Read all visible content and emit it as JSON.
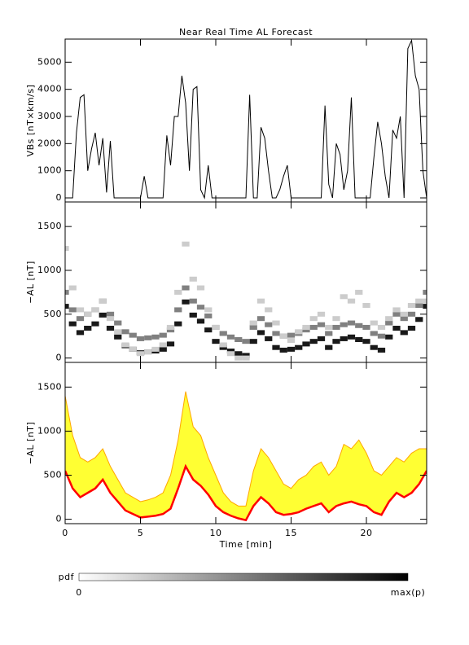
{
  "chart_data": [
    {
      "type": "line",
      "title": "Near Real Time AL Forecast",
      "ylabel": "VBs [nT×km/s]",
      "color": "#000000",
      "xlim": [
        0,
        24
      ],
      "ylim": [
        -150,
        5850
      ],
      "yticks": [
        0,
        1000,
        2000,
        3000,
        4000,
        5000
      ],
      "x": [
        0,
        0.25,
        0.5,
        0.75,
        1,
        1.25,
        1.5,
        1.75,
        2,
        2.25,
        2.5,
        2.75,
        3,
        3.25,
        3.5,
        3.75,
        4,
        4.25,
        4.5,
        4.75,
        5,
        5.25,
        5.5,
        5.75,
        6,
        6.25,
        6.5,
        6.75,
        7,
        7.25,
        7.5,
        7.75,
        8,
        8.25,
        8.5,
        8.75,
        9,
        9.25,
        9.5,
        9.75,
        10,
        10.25,
        10.5,
        10.75,
        11,
        11.25,
        11.5,
        11.75,
        12,
        12.25,
        12.5,
        12.75,
        13,
        13.25,
        13.5,
        13.75,
        14,
        14.25,
        14.5,
        14.75,
        15,
        15.25,
        15.5,
        15.75,
        16,
        16.25,
        16.5,
        16.75,
        17,
        17.25,
        17.5,
        17.75,
        18,
        18.25,
        18.5,
        18.75,
        19,
        19.25,
        19.5,
        19.75,
        20,
        20.25,
        20.5,
        20.75,
        21,
        21.25,
        21.5,
        21.75,
        22,
        22.25,
        22.5,
        22.75,
        23,
        23.25,
        23.5,
        23.75,
        24
      ],
      "values": [
        0,
        0,
        0,
        2400,
        3700,
        3800,
        1000,
        1800,
        2400,
        1200,
        2200,
        200,
        2100,
        0,
        0,
        0,
        0,
        0,
        0,
        0,
        0,
        800,
        0,
        0,
        0,
        0,
        0,
        2300,
        1200,
        3000,
        3000,
        4500,
        3500,
        1000,
        4000,
        4100,
        300,
        0,
        1200,
        0,
        0,
        0,
        0,
        0,
        0,
        0,
        0,
        0,
        0,
        3800,
        0,
        0,
        2600,
        2200,
        1000,
        0,
        0,
        300,
        800,
        1200,
        0,
        0,
        0,
        0,
        0,
        0,
        0,
        0,
        0,
        3400,
        500,
        0,
        2000,
        1600,
        300,
        1000,
        3700,
        0,
        0,
        0,
        0,
        0,
        1500,
        2800,
        2000,
        800,
        0,
        2500,
        2200,
        3000,
        0,
        5500,
        5800,
        4500,
        4000,
        1000,
        0
      ]
    },
    {
      "type": "heatmap",
      "ylabel": "−AL [nT]",
      "xlim": [
        0,
        24
      ],
      "ylim": [
        -50,
        1780
      ],
      "yticks": [
        0,
        500,
        1000,
        1500
      ],
      "x": [
        0,
        0.5,
        1,
        1.5,
        2,
        2.5,
        3,
        3.5,
        4,
        4.5,
        5,
        5.5,
        6,
        6.5,
        7,
        7.5,
        8,
        8.5,
        9,
        9.5,
        10,
        10.5,
        11,
        11.5,
        12,
        12.5,
        13,
        13.5,
        14,
        14.5,
        15,
        15.5,
        16,
        16.5,
        17,
        17.5,
        18,
        18.5,
        19,
        19.5,
        20,
        20.5,
        21,
        21.5,
        22,
        22.5,
        23,
        23.5,
        24
      ],
      "series": [
        {
          "intensity": 0.9,
          "values": [
            590,
            390,
            290,
            340,
            390,
            490,
            340,
            240,
            140,
            100,
            60,
            70,
            80,
            100,
            160,
            390,
            640,
            490,
            420,
            320,
            190,
            120,
            80,
            50,
            30,
            190,
            290,
            220,
            120,
            90,
            100,
            120,
            160,
            190,
            220,
            120,
            190,
            220,
            240,
            210,
            190,
            120,
            90,
            240,
            340,
            290,
            340,
            440,
            590
          ]
        },
        {
          "intensity": 0.5,
          "values": [
            750,
            550,
            450,
            500,
            550,
            650,
            500,
            400,
            300,
            260,
            220,
            230,
            240,
            260,
            320,
            550,
            800,
            650,
            580,
            480,
            350,
            280,
            240,
            210,
            190,
            350,
            450,
            380,
            280,
            250,
            260,
            280,
            320,
            350,
            380,
            280,
            350,
            380,
            400,
            370,
            350,
            280,
            250,
            400,
            500,
            450,
            500,
            600,
            750
          ]
        },
        {
          "intensity": 0.2,
          "values": [
            1250,
            800,
            550,
            500,
            550,
            650,
            450,
            300,
            150,
            100,
            50,
            70,
            100,
            150,
            350,
            750,
            1300,
            900,
            800,
            550,
            350,
            150,
            50,
            0,
            0,
            400,
            650,
            550,
            400,
            250,
            200,
            300,
            350,
            450,
            500,
            350,
            450,
            700,
            650,
            750,
            600,
            400,
            350,
            450,
            550,
            500,
            600,
            650,
            650
          ]
        }
      ],
      "colorbar": {
        "label": "pdf",
        "min_label": "0",
        "max_label": "max(p)"
      }
    },
    {
      "type": "band",
      "ylabel": "−AL [nT]",
      "xlabel": "Time [min]",
      "xlim": [
        0,
        24
      ],
      "ylim": [
        -50,
        1780
      ],
      "yticks": [
        0,
        500,
        1000,
        1500
      ],
      "xticks": [
        0,
        5,
        10,
        15,
        20
      ],
      "fill_color": "#ffff33",
      "upper_color": "#ffa500",
      "lower_color": "#ff0000",
      "x": [
        0,
        0.5,
        1,
        1.5,
        2,
        2.5,
        3,
        3.5,
        4,
        4.5,
        5,
        5.5,
        6,
        6.5,
        7,
        7.5,
        8,
        8.5,
        9,
        9.5,
        10,
        10.5,
        11,
        11.5,
        12,
        12.5,
        13,
        13.5,
        14,
        14.5,
        15,
        15.5,
        16,
        16.5,
        17,
        17.5,
        18,
        18.5,
        19,
        19.5,
        20,
        20.5,
        21,
        21.5,
        22,
        22.5,
        23,
        23.5,
        24
      ],
      "lower": [
        550,
        350,
        250,
        300,
        350,
        450,
        300,
        200,
        100,
        60,
        20,
        30,
        40,
        60,
        120,
        350,
        600,
        450,
        380,
        280,
        150,
        80,
        40,
        10,
        -10,
        150,
        250,
        180,
        80,
        50,
        60,
        80,
        120,
        150,
        180,
        80,
        150,
        180,
        200,
        170,
        150,
        80,
        50,
        200,
        300,
        250,
        300,
        400,
        550
      ],
      "upper": [
        1400,
        950,
        700,
        650,
        700,
        800,
        600,
        450,
        300,
        250,
        200,
        220,
        250,
        300,
        500,
        900,
        1450,
        1050,
        950,
        700,
        500,
        300,
        200,
        150,
        150,
        550,
        800,
        700,
        550,
        400,
        350,
        450,
        500,
        600,
        650,
        500,
        600,
        850,
        800,
        900,
        750,
        550,
        500,
        600,
        700,
        650,
        750,
        800,
        800
      ]
    }
  ]
}
